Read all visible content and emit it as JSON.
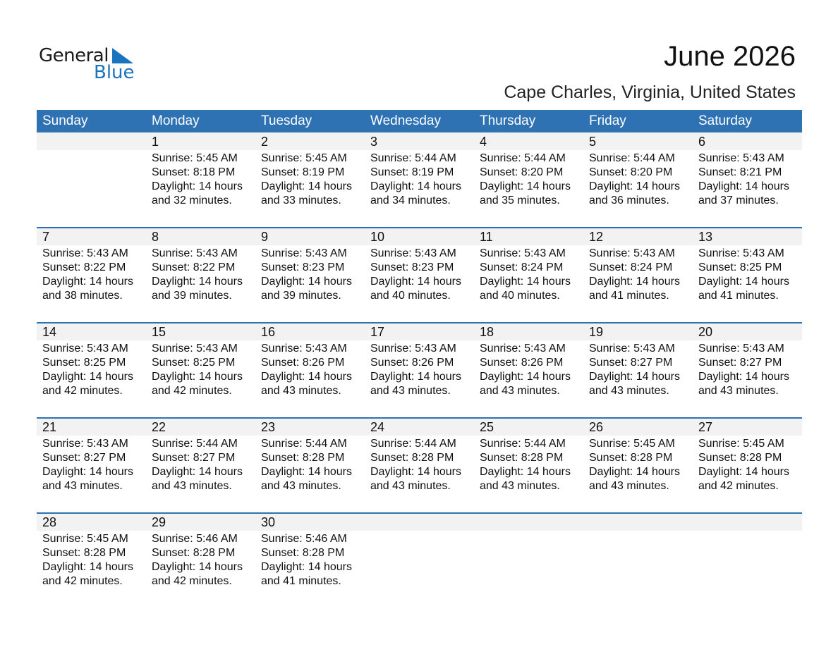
{
  "logo": {
    "general": "General",
    "blue": "Blue"
  },
  "header": {
    "title": "June 2026",
    "location": "Cape Charles, Virginia, United States"
  },
  "weekdays": [
    "Sunday",
    "Monday",
    "Tuesday",
    "Wednesday",
    "Thursday",
    "Friday",
    "Saturday"
  ],
  "colors": {
    "accent": "#2e72b3",
    "strip": "#f2f2f2"
  },
  "weeks": [
    [
      null,
      {
        "day": "1",
        "sunrise": "Sunrise: 5:45 AM",
        "sunset": "Sunset: 8:18 PM",
        "daylight1": "Daylight: 14 hours",
        "daylight2": "and 32 minutes."
      },
      {
        "day": "2",
        "sunrise": "Sunrise: 5:45 AM",
        "sunset": "Sunset: 8:19 PM",
        "daylight1": "Daylight: 14 hours",
        "daylight2": "and 33 minutes."
      },
      {
        "day": "3",
        "sunrise": "Sunrise: 5:44 AM",
        "sunset": "Sunset: 8:19 PM",
        "daylight1": "Daylight: 14 hours",
        "daylight2": "and 34 minutes."
      },
      {
        "day": "4",
        "sunrise": "Sunrise: 5:44 AM",
        "sunset": "Sunset: 8:20 PM",
        "daylight1": "Daylight: 14 hours",
        "daylight2": "and 35 minutes."
      },
      {
        "day": "5",
        "sunrise": "Sunrise: 5:44 AM",
        "sunset": "Sunset: 8:20 PM",
        "daylight1": "Daylight: 14 hours",
        "daylight2": "and 36 minutes."
      },
      {
        "day": "6",
        "sunrise": "Sunrise: 5:43 AM",
        "sunset": "Sunset: 8:21 PM",
        "daylight1": "Daylight: 14 hours",
        "daylight2": "and 37 minutes."
      }
    ],
    [
      {
        "day": "7",
        "sunrise": "Sunrise: 5:43 AM",
        "sunset": "Sunset: 8:22 PM",
        "daylight1": "Daylight: 14 hours",
        "daylight2": "and 38 minutes."
      },
      {
        "day": "8",
        "sunrise": "Sunrise: 5:43 AM",
        "sunset": "Sunset: 8:22 PM",
        "daylight1": "Daylight: 14 hours",
        "daylight2": "and 39 minutes."
      },
      {
        "day": "9",
        "sunrise": "Sunrise: 5:43 AM",
        "sunset": "Sunset: 8:23 PM",
        "daylight1": "Daylight: 14 hours",
        "daylight2": "and 39 minutes."
      },
      {
        "day": "10",
        "sunrise": "Sunrise: 5:43 AM",
        "sunset": "Sunset: 8:23 PM",
        "daylight1": "Daylight: 14 hours",
        "daylight2": "and 40 minutes."
      },
      {
        "day": "11",
        "sunrise": "Sunrise: 5:43 AM",
        "sunset": "Sunset: 8:24 PM",
        "daylight1": "Daylight: 14 hours",
        "daylight2": "and 40 minutes."
      },
      {
        "day": "12",
        "sunrise": "Sunrise: 5:43 AM",
        "sunset": "Sunset: 8:24 PM",
        "daylight1": "Daylight: 14 hours",
        "daylight2": "and 41 minutes."
      },
      {
        "day": "13",
        "sunrise": "Sunrise: 5:43 AM",
        "sunset": "Sunset: 8:25 PM",
        "daylight1": "Daylight: 14 hours",
        "daylight2": "and 41 minutes."
      }
    ],
    [
      {
        "day": "14",
        "sunrise": "Sunrise: 5:43 AM",
        "sunset": "Sunset: 8:25 PM",
        "daylight1": "Daylight: 14 hours",
        "daylight2": "and 42 minutes."
      },
      {
        "day": "15",
        "sunrise": "Sunrise: 5:43 AM",
        "sunset": "Sunset: 8:25 PM",
        "daylight1": "Daylight: 14 hours",
        "daylight2": "and 42 minutes."
      },
      {
        "day": "16",
        "sunrise": "Sunrise: 5:43 AM",
        "sunset": "Sunset: 8:26 PM",
        "daylight1": "Daylight: 14 hours",
        "daylight2": "and 43 minutes."
      },
      {
        "day": "17",
        "sunrise": "Sunrise: 5:43 AM",
        "sunset": "Sunset: 8:26 PM",
        "daylight1": "Daylight: 14 hours",
        "daylight2": "and 43 minutes."
      },
      {
        "day": "18",
        "sunrise": "Sunrise: 5:43 AM",
        "sunset": "Sunset: 8:26 PM",
        "daylight1": "Daylight: 14 hours",
        "daylight2": "and 43 minutes."
      },
      {
        "day": "19",
        "sunrise": "Sunrise: 5:43 AM",
        "sunset": "Sunset: 8:27 PM",
        "daylight1": "Daylight: 14 hours",
        "daylight2": "and 43 minutes."
      },
      {
        "day": "20",
        "sunrise": "Sunrise: 5:43 AM",
        "sunset": "Sunset: 8:27 PM",
        "daylight1": "Daylight: 14 hours",
        "daylight2": "and 43 minutes."
      }
    ],
    [
      {
        "day": "21",
        "sunrise": "Sunrise: 5:43 AM",
        "sunset": "Sunset: 8:27 PM",
        "daylight1": "Daylight: 14 hours",
        "daylight2": "and 43 minutes."
      },
      {
        "day": "22",
        "sunrise": "Sunrise: 5:44 AM",
        "sunset": "Sunset: 8:27 PM",
        "daylight1": "Daylight: 14 hours",
        "daylight2": "and 43 minutes."
      },
      {
        "day": "23",
        "sunrise": "Sunrise: 5:44 AM",
        "sunset": "Sunset: 8:28 PM",
        "daylight1": "Daylight: 14 hours",
        "daylight2": "and 43 minutes."
      },
      {
        "day": "24",
        "sunrise": "Sunrise: 5:44 AM",
        "sunset": "Sunset: 8:28 PM",
        "daylight1": "Daylight: 14 hours",
        "daylight2": "and 43 minutes."
      },
      {
        "day": "25",
        "sunrise": "Sunrise: 5:44 AM",
        "sunset": "Sunset: 8:28 PM",
        "daylight1": "Daylight: 14 hours",
        "daylight2": "and 43 minutes."
      },
      {
        "day": "26",
        "sunrise": "Sunrise: 5:45 AM",
        "sunset": "Sunset: 8:28 PM",
        "daylight1": "Daylight: 14 hours",
        "daylight2": "and 43 minutes."
      },
      {
        "day": "27",
        "sunrise": "Sunrise: 5:45 AM",
        "sunset": "Sunset: 8:28 PM",
        "daylight1": "Daylight: 14 hours",
        "daylight2": "and 42 minutes."
      }
    ],
    [
      {
        "day": "28",
        "sunrise": "Sunrise: 5:45 AM",
        "sunset": "Sunset: 8:28 PM",
        "daylight1": "Daylight: 14 hours",
        "daylight2": "and 42 minutes."
      },
      {
        "day": "29",
        "sunrise": "Sunrise: 5:46 AM",
        "sunset": "Sunset: 8:28 PM",
        "daylight1": "Daylight: 14 hours",
        "daylight2": "and 42 minutes."
      },
      {
        "day": "30",
        "sunrise": "Sunrise: 5:46 AM",
        "sunset": "Sunset: 8:28 PM",
        "daylight1": "Daylight: 14 hours",
        "daylight2": "and 41 minutes."
      },
      null,
      null,
      null,
      null
    ]
  ]
}
